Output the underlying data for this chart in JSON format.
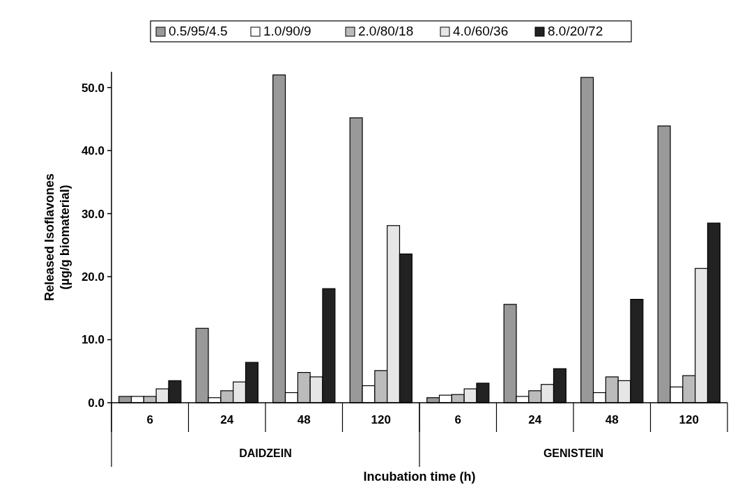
{
  "chart_data": {
    "type": "bar",
    "xlabel": "Incubation time (h)",
    "ylabel": "Released Isoflavones\n(µg/g biomaterial)",
    "categories": [
      "6",
      "24",
      "48",
      "120",
      "6",
      "24",
      "48",
      "120"
    ],
    "annotations": [
      "DAIDZEIN",
      "GENISTEIN"
    ],
    "series": [
      {
        "name": "0.5/95/4.5",
        "color": "#999999",
        "values": [
          1.0,
          11.8,
          52.0,
          45.2,
          0.8,
          15.6,
          51.6,
          43.9
        ]
      },
      {
        "name": "1.0/90/9",
        "color": "#ffffff",
        "values": [
          1.0,
          0.8,
          1.6,
          2.7,
          1.2,
          1.0,
          1.6,
          2.5
        ]
      },
      {
        "name": "2.0/80/18",
        "color": "#bbbbbb",
        "values": [
          1.0,
          1.9,
          4.8,
          5.1,
          1.3,
          1.9,
          4.1,
          4.3
        ]
      },
      {
        "name": "4.0/60/36",
        "color": "#e6e6e6",
        "values": [
          2.2,
          3.3,
          4.1,
          28.1,
          2.2,
          2.9,
          3.5,
          21.3
        ]
      },
      {
        "name": "8.0/20/72",
        "color": "#222222",
        "values": [
          3.5,
          6.4,
          18.1,
          23.6,
          3.1,
          5.4,
          16.4,
          28.5
        ]
      }
    ],
    "ylim": [
      0,
      52.5
    ],
    "yticks": [
      {
        "value": 0,
        "label": "0.0"
      },
      {
        "value": 10,
        "label": "10.0"
      },
      {
        "value": 20,
        "label": "20.0"
      },
      {
        "value": 30,
        "label": "30.0"
      },
      {
        "value": 40,
        "label": "40.0"
      },
      {
        "value": 50,
        "label": "50.0"
      }
    ],
    "legend": "top",
    "grid": false
  }
}
